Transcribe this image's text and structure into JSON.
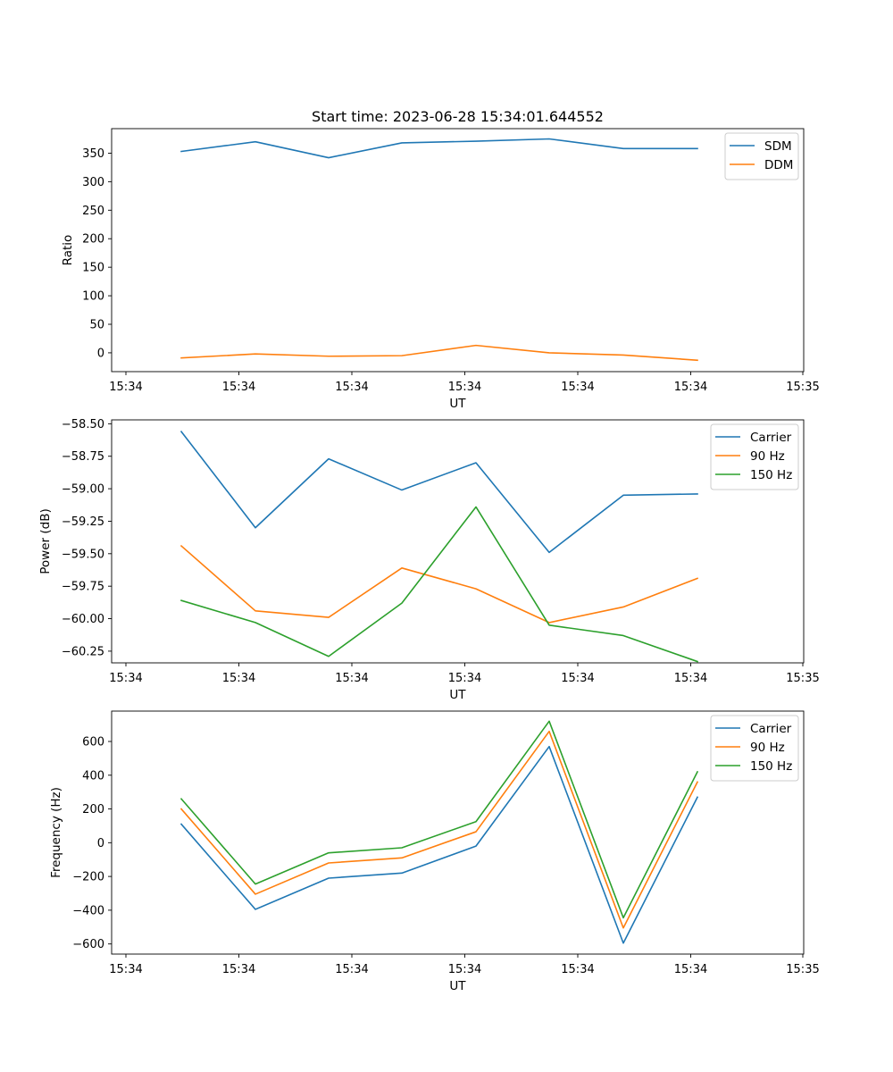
{
  "figure_title": "Start time: 2023-06-28 15:34:01.644552",
  "chart_data": [
    {
      "type": "line",
      "title": "Start time: 2023-06-28 15:34:01.644552",
      "xlabel": "UT",
      "ylabel": "Ratio",
      "x_tick_labels": [
        "15:34",
        "15:34",
        "15:34",
        "15:34",
        "15:34",
        "15:34",
        "15:34",
        "15:35"
      ],
      "ylim": [
        -33,
        393
      ],
      "y_ticks": [
        0,
        50,
        100,
        150,
        200,
        250,
        300,
        350
      ],
      "y_tick_labels": [
        "0",
        "50",
        "100",
        "150",
        "200",
        "250",
        "300",
        "350"
      ],
      "grid": false,
      "legend_position": "top-right",
      "series": [
        {
          "name": "SDM",
          "color": "#1f77b4",
          "values": [
            353,
            370,
            342,
            368,
            371,
            375,
            358,
            358
          ]
        },
        {
          "name": "DDM",
          "color": "#ff7f0e",
          "values": [
            -9,
            -2,
            -6,
            -5,
            13,
            0,
            -4,
            -13
          ]
        }
      ]
    },
    {
      "type": "line",
      "title": "",
      "xlabel": "UT",
      "ylabel": "Power (dB)",
      "x_tick_labels": [
        "15:34",
        "15:34",
        "15:34",
        "15:34",
        "15:34",
        "15:34",
        "15:34",
        "15:35"
      ],
      "ylim": [
        -60.34,
        -58.47
      ],
      "y_ticks": [
        -60.25,
        -60.0,
        -59.75,
        -59.5,
        -59.25,
        -59.0,
        -58.75,
        -58.5
      ],
      "y_tick_labels": [
        "−60.25",
        "−60.00",
        "−59.75",
        "−59.50",
        "−59.25",
        "−59.00",
        "−58.75",
        "−58.50"
      ],
      "grid": false,
      "legend_position": "top-right",
      "series": [
        {
          "name": "Carrier",
          "color": "#1f77b4",
          "values": [
            -58.56,
            -59.3,
            -58.77,
            -59.01,
            -58.8,
            -59.49,
            -59.05,
            -59.04
          ]
        },
        {
          "name": "90 Hz",
          "color": "#ff7f0e",
          "values": [
            -59.44,
            -59.94,
            -59.99,
            -59.61,
            -59.77,
            -60.03,
            -59.91,
            -59.69
          ]
        },
        {
          "name": "150 Hz",
          "color": "#2ca02c",
          "values": [
            -59.86,
            -60.03,
            -60.29,
            -59.88,
            -59.14,
            -60.05,
            -60.13,
            -60.33
          ]
        }
      ]
    },
    {
      "type": "line",
      "title": "",
      "xlabel": "UT",
      "ylabel": "Frequency (Hz)",
      "x_tick_labels": [
        "15:34",
        "15:34",
        "15:34",
        "15:34",
        "15:34",
        "15:34",
        "15:34",
        "15:35"
      ],
      "ylim": [
        -660,
        780
      ],
      "y_ticks": [
        -600,
        -400,
        -200,
        0,
        200,
        400,
        600
      ],
      "y_tick_labels": [
        "−600",
        "−400",
        "−200",
        "0",
        "200",
        "400",
        "600"
      ],
      "grid": false,
      "legend_position": "top-right",
      "series": [
        {
          "name": "Carrier",
          "color": "#1f77b4",
          "values": [
            110,
            -395,
            -210,
            -180,
            -20,
            570,
            -595,
            270
          ]
        },
        {
          "name": "90 Hz",
          "color": "#ff7f0e",
          "values": [
            200,
            -305,
            -120,
            -90,
            65,
            660,
            -505,
            360
          ]
        },
        {
          "name": "150 Hz",
          "color": "#2ca02c",
          "values": [
            260,
            -245,
            -60,
            -30,
            125,
            720,
            -445,
            420
          ]
        }
      ]
    }
  ]
}
